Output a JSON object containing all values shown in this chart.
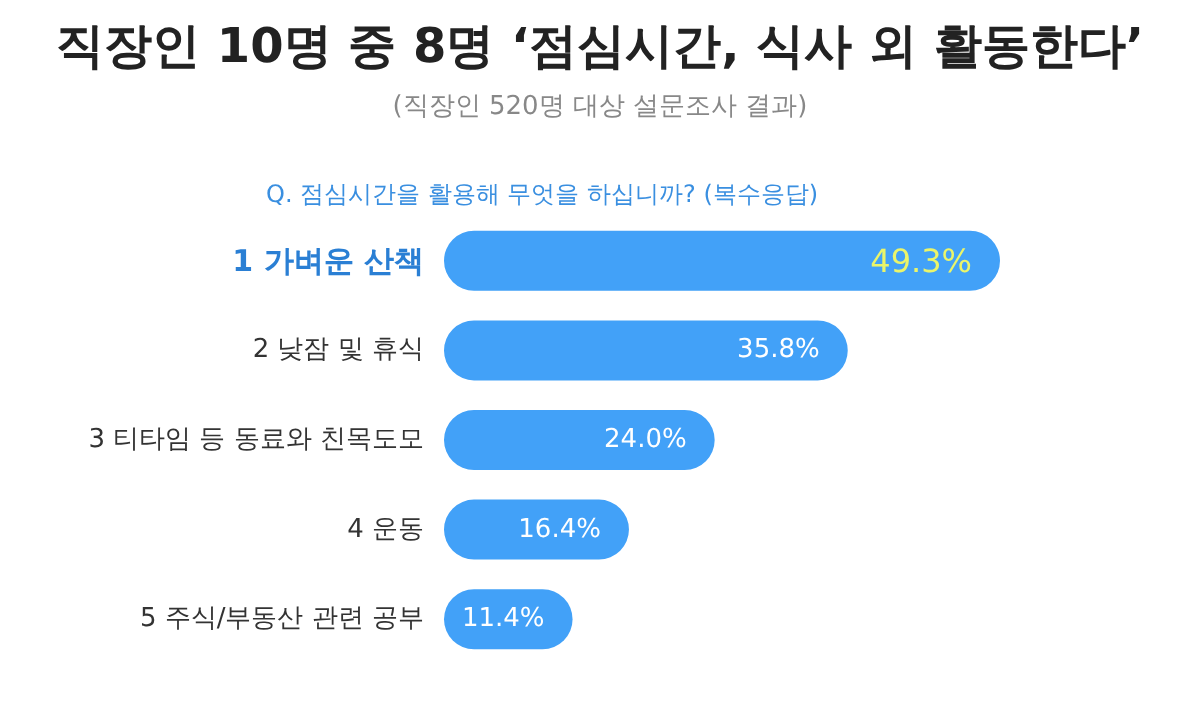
{
  "chart_data": {
    "type": "bar",
    "orientation": "horizontal",
    "title": "직장인 10명 중 8명 ‘점심시간, 식사 외 활동한다’",
    "subtitle": "(직장인 520명 대상 설문조사 결과)",
    "annotations": [
      "Q. 점심시간을 활용해 무엇을 하십니까? (복수응답)"
    ],
    "categories": [
      "1 가벼운 산책",
      "2 낮잠 및 휴식",
      "3 티타임 등 동료와 친목도모",
      "4 운동",
      "5 주식/부동산 관련 공부"
    ],
    "values": [
      49.3,
      35.8,
      24.0,
      16.4,
      11.4
    ],
    "value_labels": [
      "49.3%",
      "35.8%",
      "24.0%",
      "16.4%",
      "11.4%"
    ],
    "color": "#42a1f8"
  }
}
